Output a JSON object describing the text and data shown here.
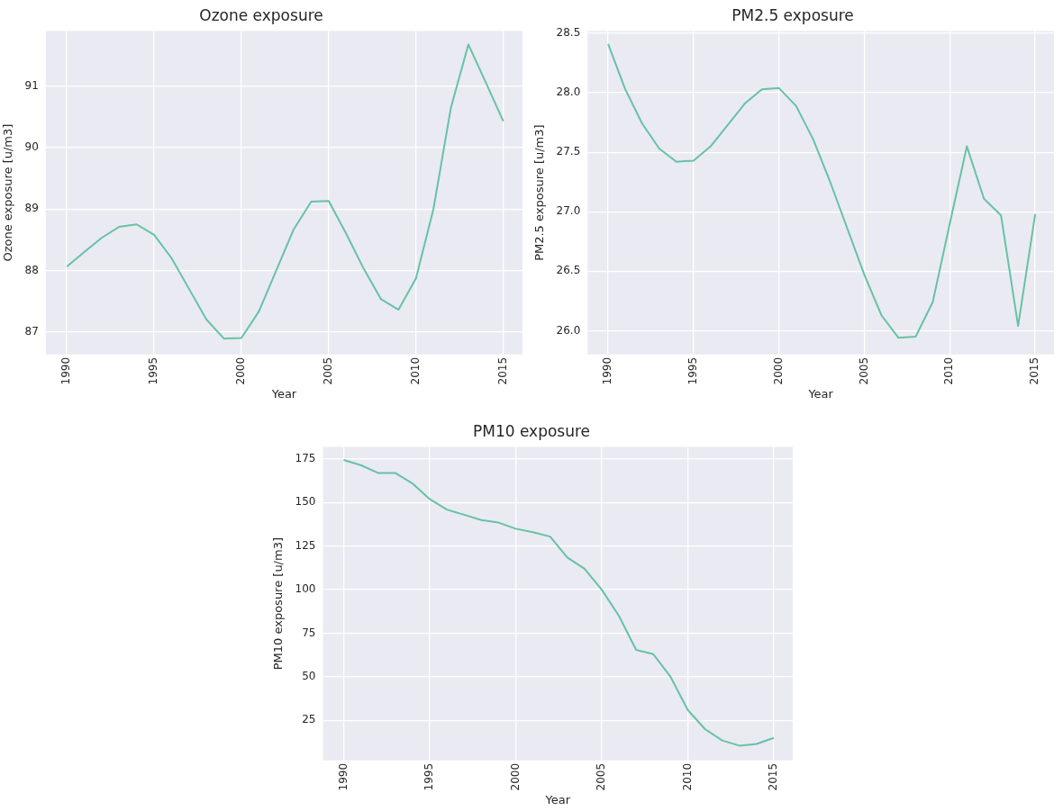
{
  "chart_data": [
    {
      "type": "line",
      "title": "Ozone exposure",
      "xlabel": "Year",
      "ylabel": "Ozone exposure [u/m3]",
      "x": [
        1990,
        1991,
        1992,
        1993,
        1994,
        1995,
        1996,
        1997,
        1998,
        1999,
        2000,
        2001,
        2002,
        2003,
        2004,
        2005,
        2006,
        2007,
        2008,
        2009,
        2010,
        2011,
        2012,
        2013,
        2014,
        2015
      ],
      "series": [
        {
          "color": "#66c2a5",
          "values": [
            88.06,
            88.3,
            88.53,
            88.71,
            88.75,
            88.58,
            88.2,
            87.7,
            87.2,
            86.89,
            86.9,
            87.33,
            88.0,
            88.67,
            89.12,
            89.13,
            88.6,
            88.03,
            87.53,
            87.36,
            87.87,
            89.0,
            90.65,
            91.68,
            91.06,
            90.43
          ]
        }
      ],
      "xlim": [
        1988.8,
        2016.1
      ],
      "xticks": [
        1990,
        1995,
        2000,
        2005,
        2010,
        2015
      ],
      "ylim": [
        86.63,
        91.9
      ],
      "yticks": [
        87,
        88,
        89,
        90,
        91
      ],
      "grid": true,
      "legend": false,
      "marker": "none",
      "line_style": "solid"
    },
    {
      "type": "line",
      "title": "PM2.5 exposure",
      "xlabel": "Year",
      "ylabel": "PM2.5 exposure [u/m3]",
      "x": [
        1990,
        1991,
        1992,
        1993,
        1994,
        1995,
        1996,
        1997,
        1998,
        1999,
        2000,
        2001,
        2002,
        2003,
        2004,
        2005,
        2006,
        2007,
        2008,
        2009,
        2010,
        2011,
        2012,
        2013,
        2014,
        2015
      ],
      "series": [
        {
          "color": "#66c2a5",
          "values": [
            28.41,
            28.03,
            27.74,
            27.53,
            27.42,
            27.43,
            27.55,
            27.73,
            27.91,
            28.03,
            28.04,
            27.89,
            27.61,
            27.25,
            26.86,
            26.47,
            26.13,
            25.94,
            25.95,
            26.24,
            26.9,
            27.55,
            27.11,
            26.97,
            26.04,
            26.98
          ]
        }
      ],
      "xlim": [
        1988.8,
        2016.1
      ],
      "xticks": [
        1990,
        1995,
        2000,
        2005,
        2010,
        2015
      ],
      "ylim": [
        25.8,
        28.52
      ],
      "yticks": [
        {
          "value": 26,
          "label": "26.0"
        },
        26.5,
        {
          "value": 27,
          "label": "27.0"
        },
        27.5,
        {
          "value": 28,
          "label": "28.0"
        },
        28.5
      ],
      "grid": true,
      "legend": false,
      "marker": "none",
      "line_style": "solid"
    },
    {
      "type": "line",
      "title": "PM10 exposure",
      "xlabel": "Year",
      "ylabel": "PM10 exposure [u/m3]",
      "x": [
        1990,
        1991,
        1992,
        1993,
        1994,
        1995,
        1996,
        1997,
        1998,
        1999,
        2000,
        2001,
        2002,
        2003,
        2004,
        2005,
        2006,
        2007,
        2008,
        2009,
        2010,
        2011,
        2012,
        2013,
        2014,
        2015
      ],
      "series": [
        {
          "color": "#66c2a5",
          "values": [
            174.5,
            171.5,
            167,
            167,
            161,
            152,
            146,
            143,
            140,
            138.5,
            135,
            133,
            130.5,
            118.5,
            112,
            100,
            85,
            65.5,
            63,
            50,
            31,
            20,
            13.5,
            10.5,
            11.5,
            15
          ]
        }
      ],
      "xlim": [
        1988.8,
        2016.1
      ],
      "xticks": [
        1990,
        1995,
        2000,
        2005,
        2010,
        2015
      ],
      "ylim": [
        2,
        182
      ],
      "yticks": [
        25,
        50,
        75,
        100,
        125,
        150,
        175
      ],
      "grid": true,
      "legend": false,
      "marker": "none",
      "line_style": "solid"
    }
  ]
}
